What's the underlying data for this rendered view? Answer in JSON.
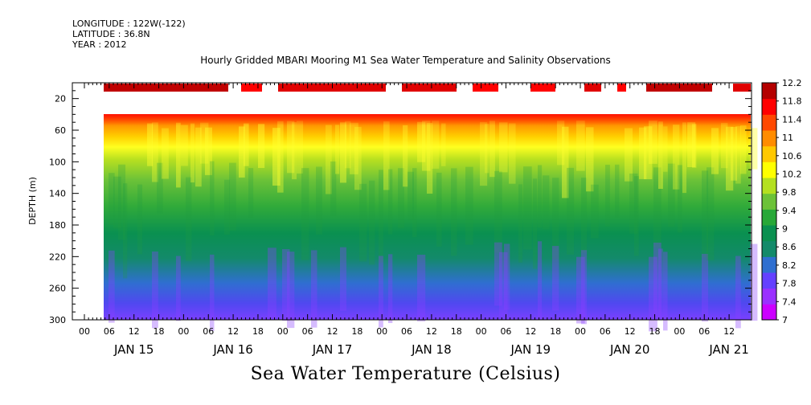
{
  "header": {
    "longitude": "LONGITUDE : 122W(-122)",
    "latitude": "LATITUDE : 36.8N",
    "year": "YEAR : 2012"
  },
  "chart_data": {
    "type": "heatmap",
    "title": "Hourly Gridded MBARI Mooring M1 Sea Water Temperature and Salinity Observations",
    "colorbar_title": "Sea Water Temperature (Celsius)",
    "ylabel": "DEPTH (m)",
    "ylim": [
      300,
      0
    ],
    "y_ticks": [
      20,
      60,
      100,
      140,
      180,
      220,
      260,
      300
    ],
    "data_depth_range": [
      40,
      300
    ],
    "x_hour_ticks": [
      "00",
      "06",
      "12",
      "18",
      "00",
      "06",
      "12",
      "18",
      "00",
      "06",
      "12",
      "18",
      "00",
      "06",
      "12",
      "18",
      "00",
      "06",
      "12",
      "18",
      "00",
      "06",
      "12",
      "18",
      "00",
      "06",
      "12"
    ],
    "x_day_labels": [
      "JAN 15",
      "JAN 16",
      "JAN 17",
      "JAN 18",
      "JAN 19",
      "JAN 20",
      "JAN 21"
    ],
    "colorbar_levels": [
      7,
      7.4,
      7.8,
      8.2,
      8.6,
      9,
      9.4,
      9.8,
      10.2,
      10.6,
      11,
      11.4,
      11.8,
      12.2
    ],
    "colorbar_colors": [
      "#cc00ff",
      "#9a30ff",
      "#6440ff",
      "#2f6fd0",
      "#138a6a",
      "#0a9050",
      "#28a838",
      "#6cc238",
      "#b4e020",
      "#ffff00",
      "#ffc800",
      "#ff8c00",
      "#ff4800",
      "#ff0000",
      "#b40000"
    ],
    "temperature_profile": {
      "depths_m": [
        40,
        60,
        80,
        100,
        140,
        180,
        220,
        260,
        300
      ],
      "typical_values_C": [
        11.5,
        11.0,
        10.4,
        9.9,
        9.3,
        8.9,
        8.5,
        8.0,
        7.5
      ]
    }
  }
}
